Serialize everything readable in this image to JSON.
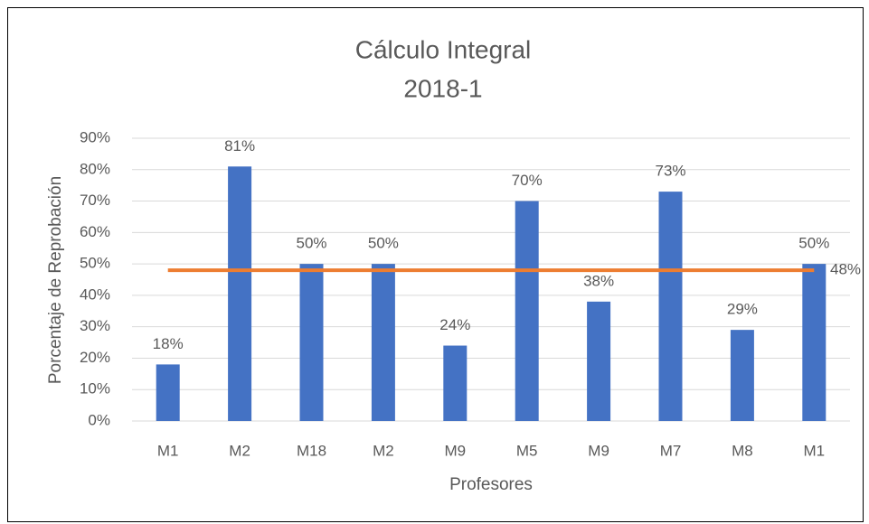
{
  "chart_data": {
    "type": "bar",
    "title": "Cálculo Integral",
    "subtitle": "2018-1",
    "x_label": "Profesores",
    "y_label": "Porcentaje de Reprobación",
    "categories": [
      "M1",
      "M2",
      "M18",
      "M2",
      "M9",
      "M5",
      "M9",
      "M7",
      "M8",
      "M1"
    ],
    "values": [
      18,
      81,
      50,
      50,
      24,
      70,
      38,
      73,
      29,
      50
    ],
    "value_labels": [
      "18%",
      "81%",
      "50%",
      "50%",
      "24%",
      "70%",
      "38%",
      "73%",
      "29%",
      "50%"
    ],
    "color": "#4472c4",
    "reference_line": {
      "value": 48,
      "label": "48%",
      "color": "#ed7d31"
    },
    "ylim": [
      0,
      90
    ],
    "yticks": [
      {
        "value": 0,
        "label": "0%"
      },
      {
        "value": 10,
        "label": "10%"
      },
      {
        "value": 20,
        "label": "20%"
      },
      {
        "value": 30,
        "label": "30%"
      },
      {
        "value": 40,
        "label": "40%"
      },
      {
        "value": 50,
        "label": "50%"
      },
      {
        "value": 60,
        "label": "60%"
      },
      {
        "value": 70,
        "label": "70%"
      },
      {
        "value": 80,
        "label": "80%"
      },
      {
        "value": 90,
        "label": "90%"
      }
    ],
    "grid": true
  }
}
